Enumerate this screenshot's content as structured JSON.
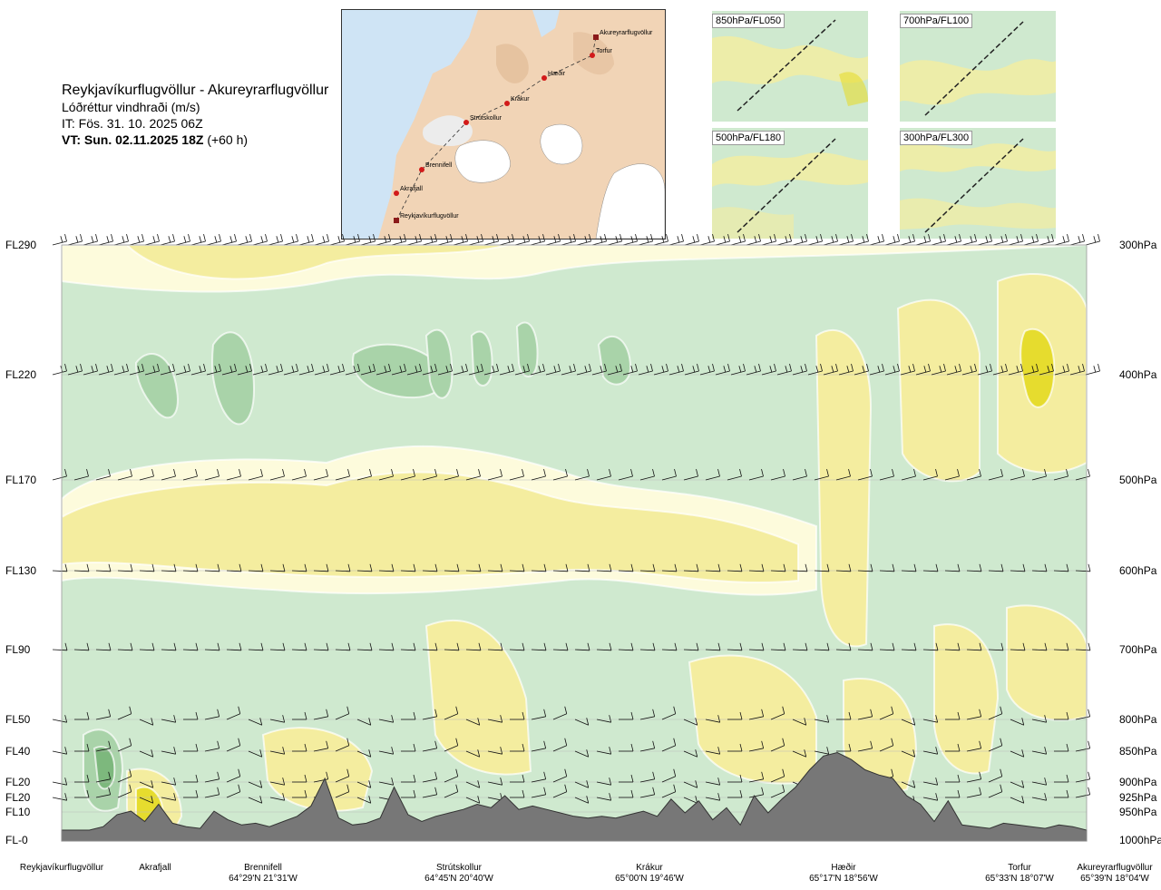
{
  "header": {
    "route": "Reykjavíkurflugvöllur - Akureyrarflugvöllur",
    "subtitle": "Lóðréttur vindhraði (m/s)",
    "issue": "IT: Fös. 31. 10. 2025 06Z",
    "valid_bold": "VT: Sun. 02.11.2025 18Z",
    "valid_rest": "(+60 h)"
  },
  "map": {
    "points": [
      {
        "name": "Akureyrarflugvöllur"
      },
      {
        "name": "Torfur"
      },
      {
        "name": "Hæðir"
      },
      {
        "name": "Krákur"
      },
      {
        "name": "Strútskollur"
      },
      {
        "name": "Brennifell"
      },
      {
        "name": "Akrafjall"
      },
      {
        "name": "Reykjavíkurflugvöllur"
      }
    ]
  },
  "panels": [
    {
      "label": "850hPa/FL050"
    },
    {
      "label": "700hPa/FL100"
    },
    {
      "label": "500hPa/FL180"
    },
    {
      "label": "300hPa/FL300"
    }
  ],
  "chart_data": {
    "type": "heatmap",
    "title": "Lóðréttur vindhraði (m/s)",
    "left_axis": [
      "FL290",
      "FL220",
      "FL170",
      "FL130",
      "FL90",
      "FL50",
      "FL40",
      "FL20",
      "FL20",
      "FL10",
      "FL-0"
    ],
    "right_axis": [
      "300hPa",
      "400hPa",
      "500hPa",
      "600hPa",
      "700hPa",
      "800hPa",
      "850hPa",
      "900hPa",
      "925hPa",
      "950hPa",
      "1000hPa"
    ],
    "levels_hpa": [
      300,
      400,
      500,
      600,
      700,
      800,
      850,
      900,
      925,
      950,
      1000
    ],
    "x_locations": [
      {
        "name": "Reykjavíkurflugvöllur",
        "coord": ""
      },
      {
        "name": "Akrafjall",
        "coord": ""
      },
      {
        "name": "Brennifell",
        "coord": "64°29'N 21°31'W"
      },
      {
        "name": "Strútskollur",
        "coord": "64°45'N 20°40'W"
      },
      {
        "name": "Krákur",
        "coord": "65°00'N 19°46'W"
      },
      {
        "name": "Hæðir",
        "coord": "65°17'N 18°56'W"
      },
      {
        "name": "Torfur",
        "coord": "65°33'N 18°07'W"
      },
      {
        "name": "Akureyrarflugvöllur",
        "coord": "65°39'N 18°04'W"
      }
    ],
    "terrain_profile": [
      0,
      0,
      0,
      4,
      18,
      22,
      10,
      30,
      8,
      4,
      2,
      22,
      12,
      6,
      8,
      4,
      10,
      16,
      28,
      60,
      14,
      6,
      8,
      14,
      50,
      18,
      10,
      16,
      20,
      24,
      30,
      26,
      40,
      24,
      28,
      24,
      20,
      16,
      14,
      16,
      14,
      18,
      22,
      16,
      36,
      20,
      34,
      12,
      26,
      6,
      40,
      20,
      36,
      50,
      70,
      86,
      90,
      82,
      70,
      64,
      60,
      40,
      30,
      10,
      34,
      6,
      4,
      2,
      8,
      6,
      4,
      2,
      6,
      4,
      0
    ],
    "colors": {
      "strong_down": "#7db87d",
      "down": "#a9d3a9",
      "weak_down": "#cfe9cf",
      "neutral": "#f2faee",
      "weak_up": "#fdfbdc",
      "up": "#f4ed9f",
      "strong_up": "#e6dc2e",
      "terrain": "#777777",
      "route": "#d21a1a"
    }
  }
}
